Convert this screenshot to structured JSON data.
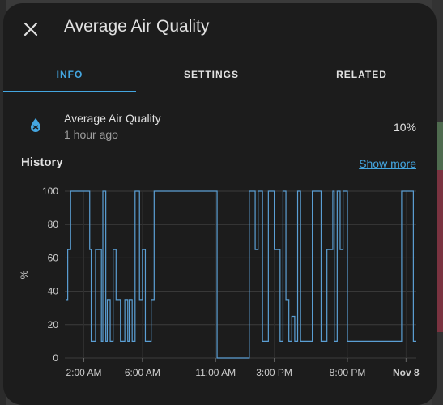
{
  "dialog": {
    "title": "Average Air Quality",
    "tabs": [
      {
        "label": "INFO",
        "active": true
      },
      {
        "label": "SETTINGS",
        "active": false
      },
      {
        "label": "RELATED",
        "active": false
      }
    ]
  },
  "entity": {
    "name": "Average Air Quality",
    "last_changed": "1 hour ago",
    "state": "10%",
    "icon": "air-quality-droplet-icon"
  },
  "history": {
    "title": "History",
    "show_more": "Show more"
  },
  "colors": {
    "accent": "#44a6e0",
    "line": "#5b9fd4",
    "background": "#1c1c1c"
  },
  "chart_data": {
    "type": "line",
    "ylabel": "%",
    "ylim": [
      0,
      100
    ],
    "yticks": [
      "0",
      "20",
      "40",
      "60",
      "80",
      "100"
    ],
    "xticks": [
      "2:00 AM",
      "6:00 AM",
      "11:00 AM",
      "3:00 PM",
      "8:00 PM",
      "Nov 8"
    ],
    "xtick_positions_hours": [
      2,
      6,
      11,
      15,
      20,
      24
    ],
    "series": [
      {
        "values_hours": [
          0.8,
          0.9,
          1.0,
          1.1,
          1.2,
          1.3,
          1.5,
          2.4,
          2.5,
          2.6,
          2.8,
          3.0,
          3.2,
          3.3,
          3.5,
          3.6,
          3.8,
          4.0,
          4.2,
          4.5,
          4.8,
          5.0,
          5.1,
          5.3,
          5.5,
          5.8,
          6.0,
          6.2,
          6.4,
          6.6,
          6.8,
          7.0,
          9.0,
          11.0,
          11.1,
          12.0,
          13.0,
          13.3,
          13.5,
          13.7,
          13.9,
          14.2,
          14.6,
          15.0,
          15.4,
          15.6,
          15.8,
          16.0,
          16.2,
          16.4,
          16.6,
          16.8,
          17.0,
          17.6,
          18.2,
          18.6,
          19.0,
          19.1,
          19.3,
          19.5,
          19.7,
          20.0,
          22.0,
          23.6,
          23.7,
          24.5
        ],
        "values": [
          35,
          65,
          65,
          100,
          100,
          100,
          100,
          65,
          10,
          10,
          65,
          65,
          10,
          100,
          10,
          35,
          10,
          65,
          35,
          10,
          35,
          10,
          35,
          10,
          100,
          35,
          65,
          10,
          10,
          35,
          100,
          100,
          100,
          100,
          0,
          0,
          0,
          100,
          100,
          65,
          100,
          10,
          100,
          65,
          10,
          100,
          35,
          10,
          25,
          10,
          100,
          10,
          10,
          100,
          10,
          65,
          100,
          10,
          100,
          65,
          100,
          10,
          10,
          10,
          100,
          10
        ]
      }
    ]
  }
}
